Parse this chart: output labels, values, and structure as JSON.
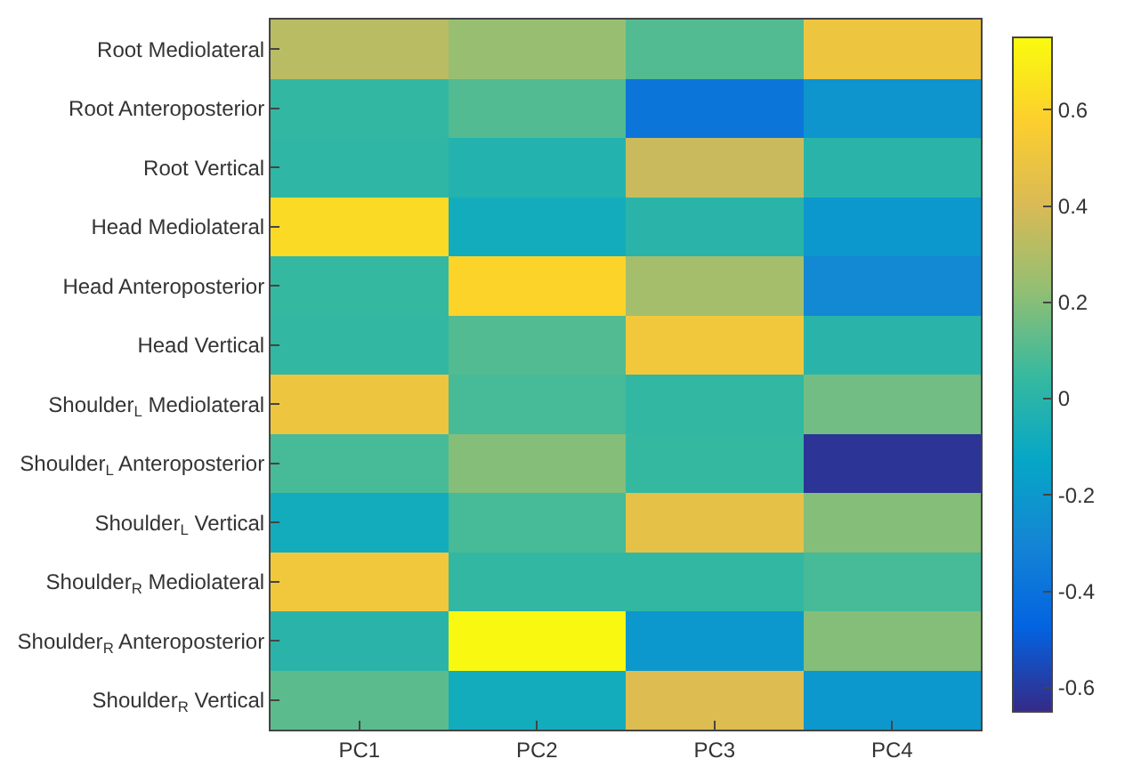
{
  "chart_data": {
    "type": "heatmap",
    "categories": [
      "PC1",
      "PC2",
      "PC3",
      "PC4"
    ],
    "y_categories": [
      "Root Mediolateral",
      "Root Anteroposterior",
      "Root Vertical",
      "Head Mediolateral",
      "Head Anteroposterior",
      "Head Vertical",
      "Shoulder$_{L}$ Mediolateral",
      "Shoulder$_{L}$ Anteroposterior",
      "Shoulder$_{L}$ Vertical",
      "Shoulder$_{R}$ Mediolateral",
      "Shoulder$_{R}$ Anteroposterior",
      "Shoulder$_{R}$ Vertical"
    ],
    "cells": [
      [
        0.32,
        0.24,
        0.1,
        0.5
      ],
      [
        0.03,
        0.1,
        -0.38,
        -0.22
      ],
      [
        0.02,
        -0.02,
        0.36,
        0.0
      ],
      [
        0.62,
        -0.08,
        0.0,
        -0.2
      ],
      [
        0.04,
        0.6,
        0.27,
        -0.28
      ],
      [
        0.03,
        0.1,
        0.52,
        0.0
      ],
      [
        0.5,
        0.08,
        0.03,
        0.16
      ],
      [
        0.08,
        0.2,
        0.04,
        -0.62
      ],
      [
        -0.08,
        0.08,
        0.46,
        0.2
      ],
      [
        0.52,
        0.03,
        0.03,
        0.08
      ],
      [
        0.0,
        0.74,
        -0.2,
        0.2
      ],
      [
        0.12,
        -0.08,
        0.42,
        -0.2
      ]
    ],
    "clim": [
      -0.65,
      0.75
    ],
    "cticks": [
      -0.6,
      -0.4,
      -0.2,
      0,
      0.2,
      0.4,
      0.6
    ]
  }
}
